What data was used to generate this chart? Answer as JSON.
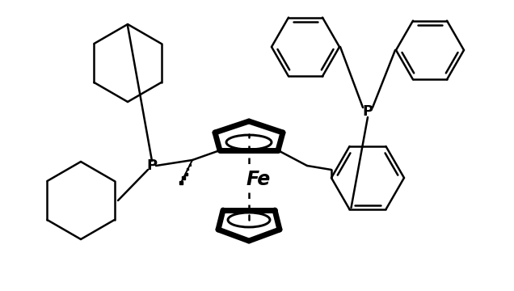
{
  "background_color": "#ffffff",
  "line_color": "#000000",
  "lw": 1.8,
  "blw": 5.0,
  "figsize": [
    6.36,
    3.6
  ],
  "dpi": 100,
  "Fe_label": "Fe",
  "P_label": "P"
}
